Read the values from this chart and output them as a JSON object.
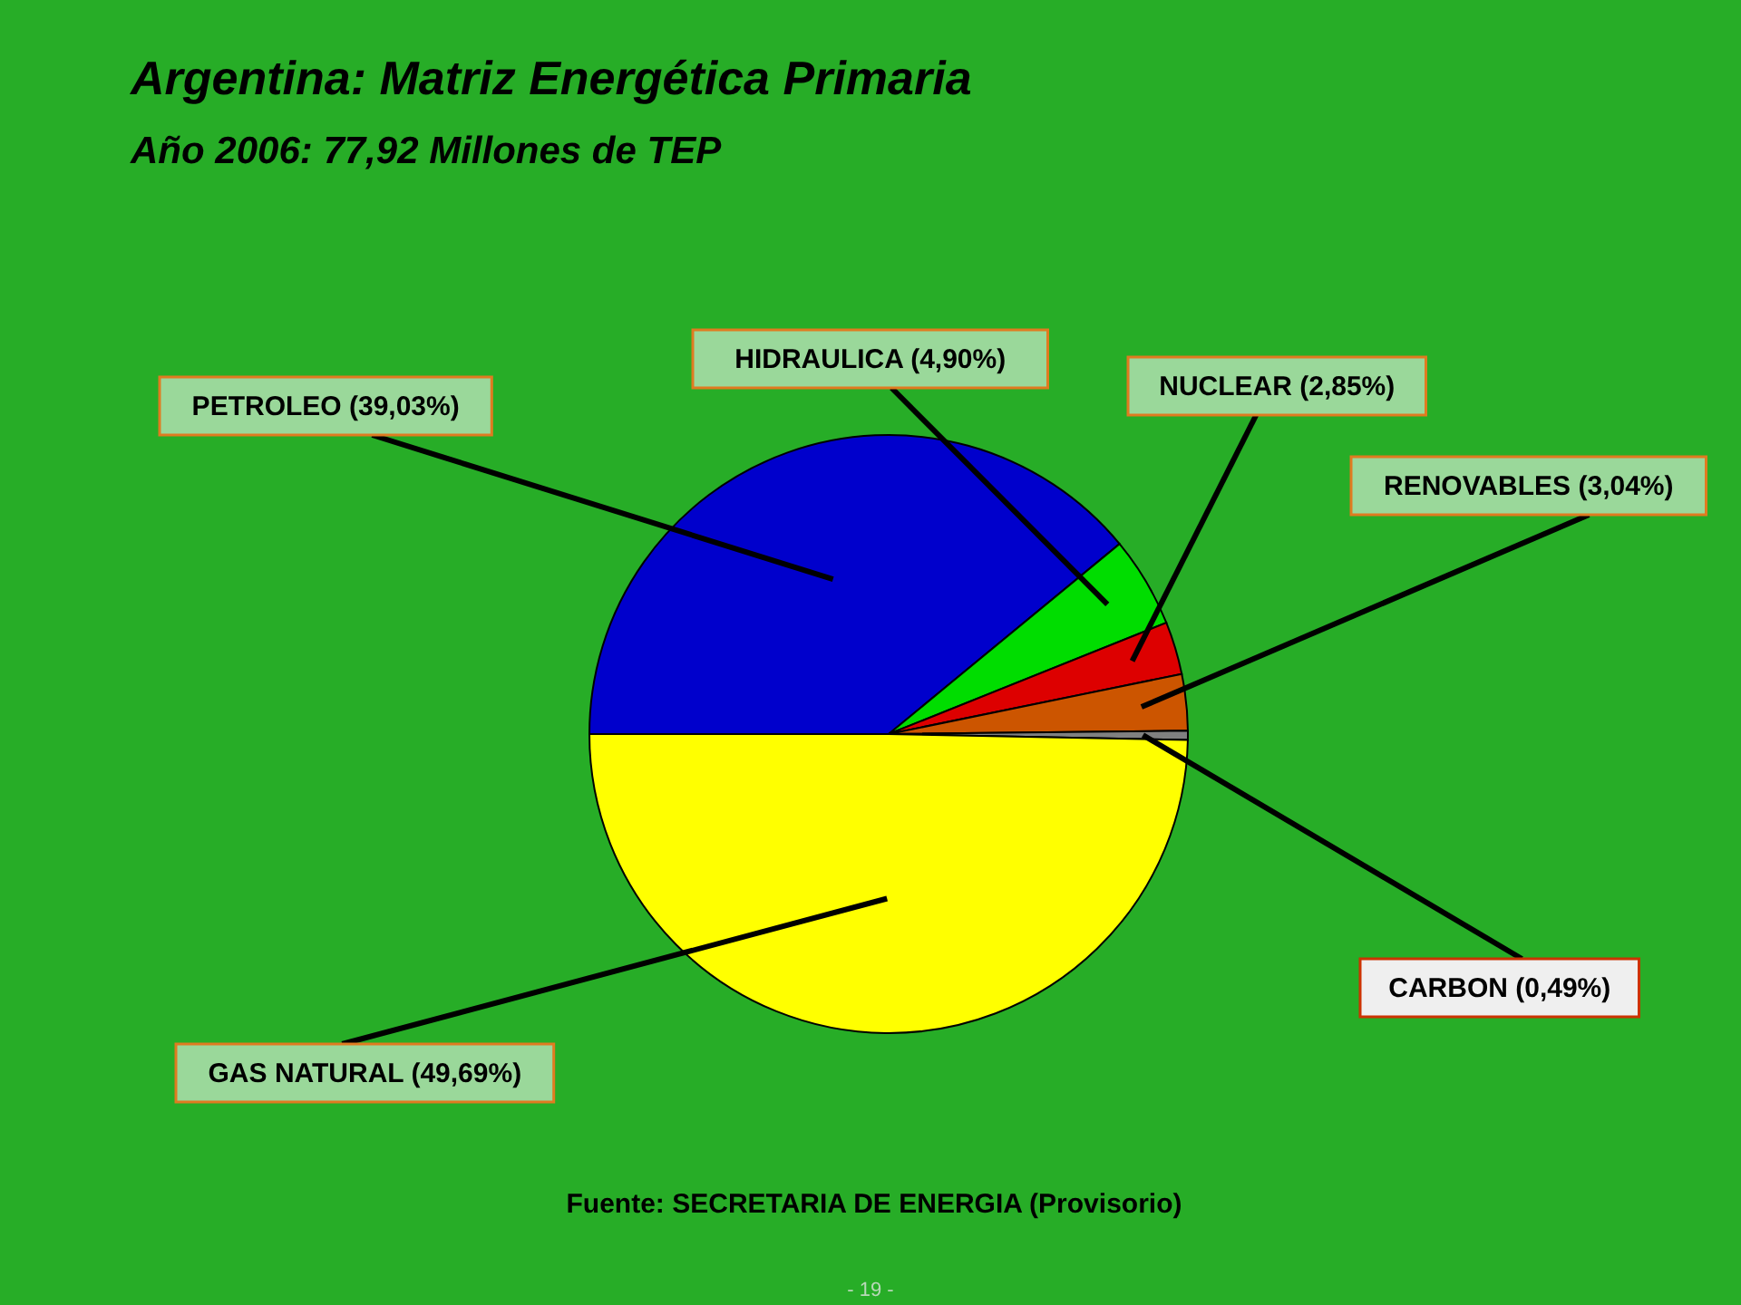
{
  "chart_data": {
    "type": "pie",
    "title": "Argentina: Matriz Energética Primaria",
    "subtitle": "Año 2006: 77,92 Millones de TEP",
    "categories": [
      "PETROLEO",
      "HIDRAULICA",
      "NUCLEAR",
      "RENOVABLES",
      "CARBON",
      "GAS NATURAL"
    ],
    "values": [
      39.03,
      4.9,
      2.85,
      3.04,
      0.49,
      49.69
    ],
    "colors": [
      "#0000cc",
      "#00dd00",
      "#dd0000",
      "#cc5500",
      "#808080",
      "#ffff00"
    ],
    "value_labels": [
      "(39,03%)",
      "(4,90%)",
      "(2,85%)",
      "(3,04%)",
      "(0,49%)",
      "(49,69%)"
    ],
    "annotations": [
      "Fuente: SECRETARIA DE ENERGIA (Provisorio)",
      "- 19 -"
    ]
  }
}
